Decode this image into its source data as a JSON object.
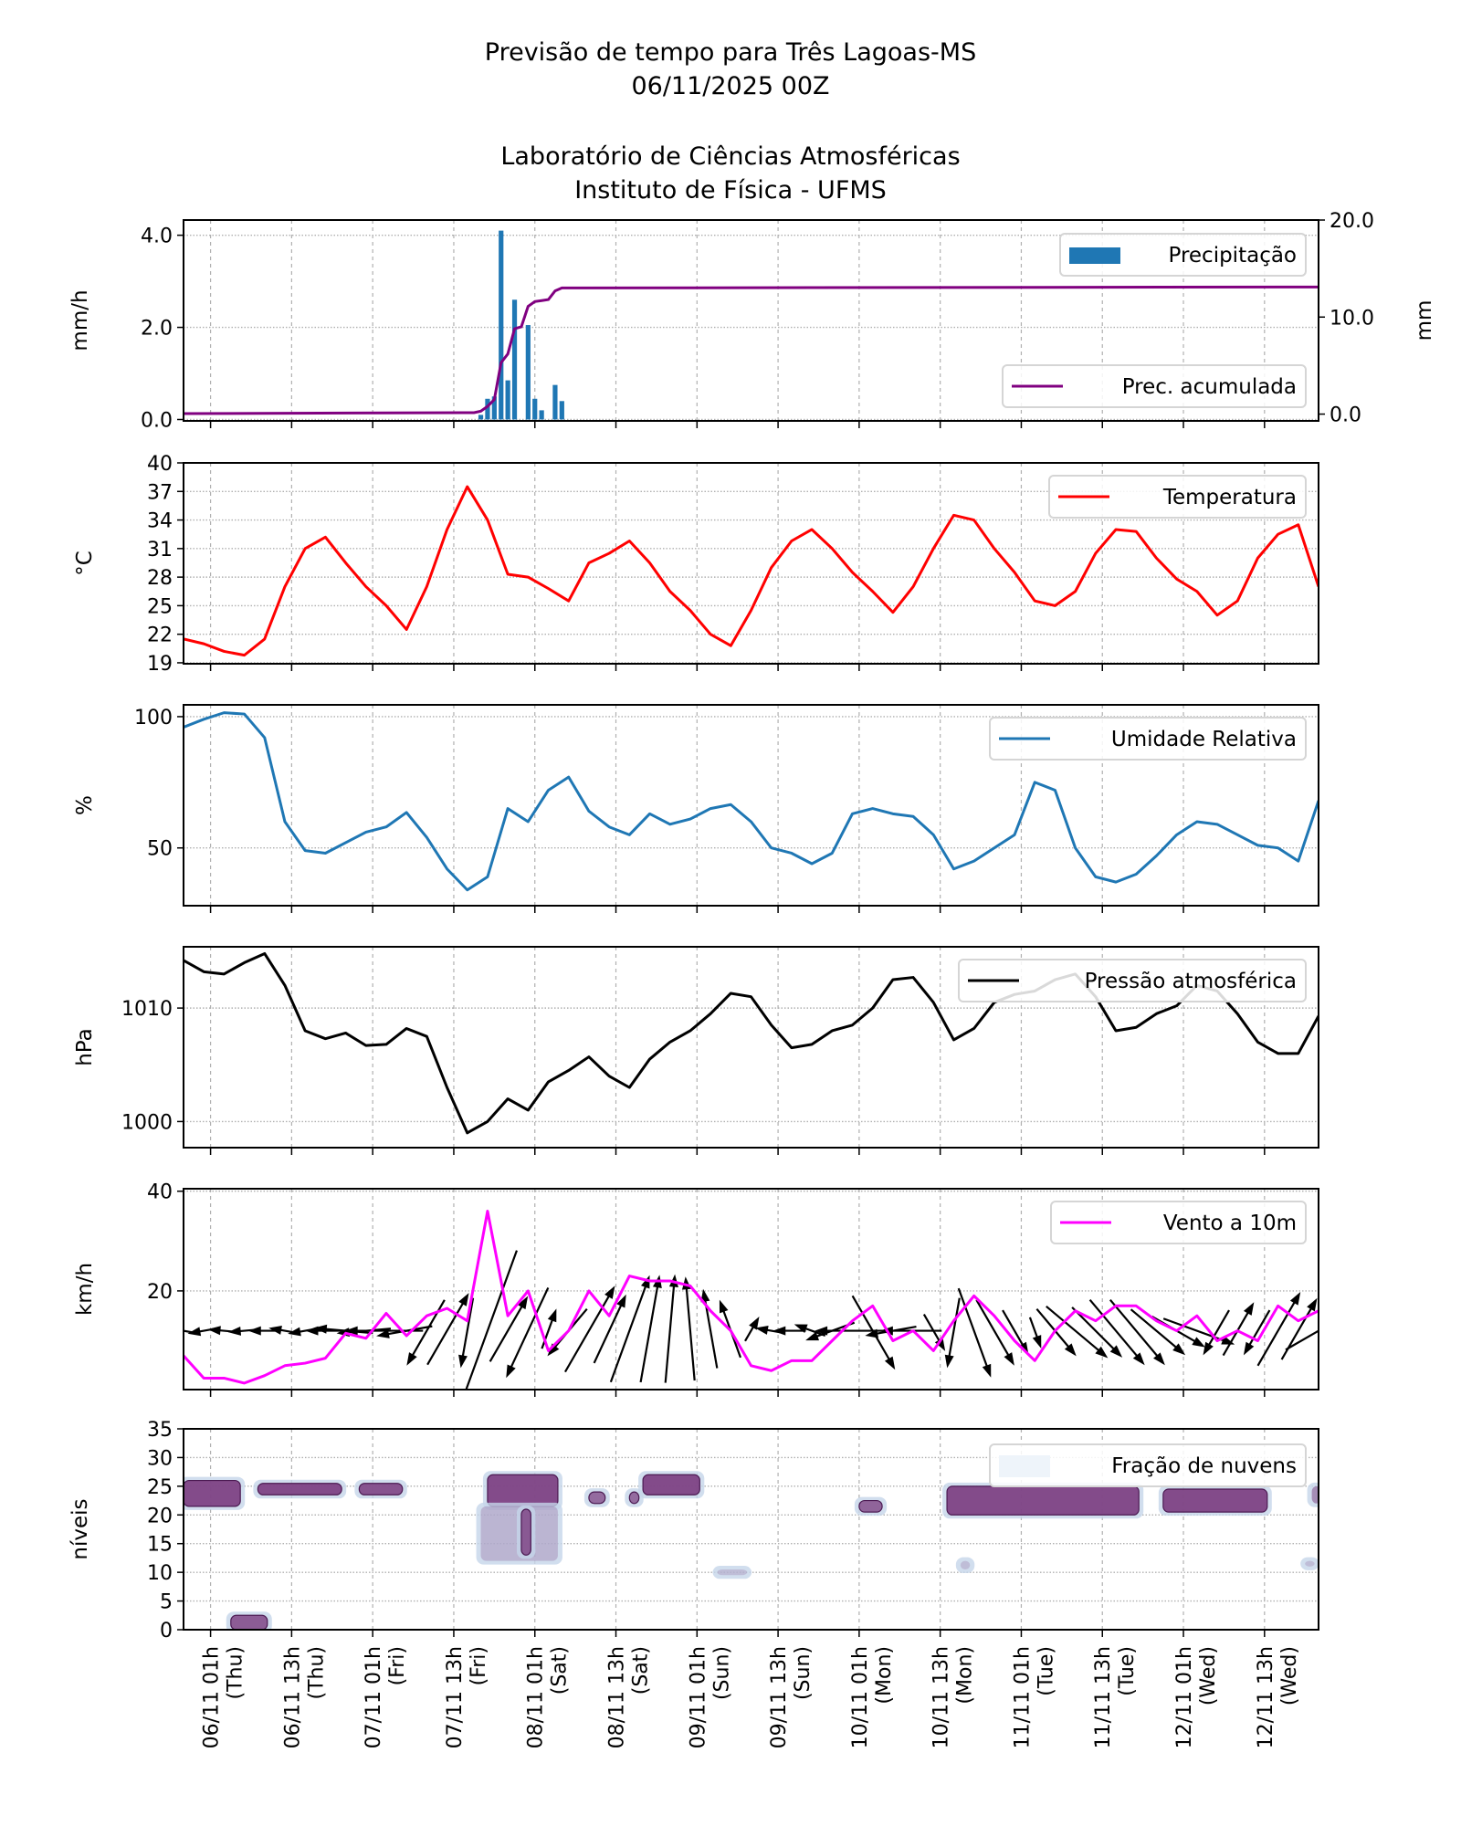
{
  "title_lines": [
    "Previsão de tempo para Três Lagoas-MS",
    "06/11/2025 00Z",
    "Laboratório de Ciências Atmosféricas",
    "Instituto de Física - UFMS"
  ],
  "chart_data": {
    "type": "line",
    "xlim": [
      "05/11 21h",
      "12/11 21h"
    ],
    "x_ticks": [
      {
        "date": "06/11 01h",
        "day": "(Thu)"
      },
      {
        "date": "06/11 13h",
        "day": "(Thu)"
      },
      {
        "date": "07/11 01h",
        "day": "(Fri)"
      },
      {
        "date": "07/11 13h",
        "day": "(Fri)"
      },
      {
        "date": "08/11 01h",
        "day": "(Sat)"
      },
      {
        "date": "08/11 13h",
        "day": "(Sat)"
      },
      {
        "date": "09/11 01h",
        "day": "(Sun)"
      },
      {
        "date": "09/11 13h",
        "day": "(Sun)"
      },
      {
        "date": "10/11 01h",
        "day": "(Mon)"
      },
      {
        "date": "10/11 13h",
        "day": "(Mon)"
      },
      {
        "date": "11/11 01h",
        "day": "(Tue)"
      },
      {
        "date": "11/11 13h",
        "day": "(Tue)"
      },
      {
        "date": "12/11 01h",
        "day": "(Wed)"
      },
      {
        "date": "12/11 13h",
        "day": "(Wed)"
      }
    ],
    "grid": true,
    "times": [
      "05/11 21h",
      "06/11 00h",
      "06/11 03h",
      "06/11 06h",
      "06/11 09h",
      "06/11 12h",
      "06/11 15h",
      "06/11 18h",
      "06/11 21h",
      "07/11 00h",
      "07/11 03h",
      "07/11 06h",
      "07/11 09h",
      "07/11 12h",
      "07/11 15h",
      "07/11 18h",
      "07/11 21h",
      "08/11 00h",
      "08/11 03h",
      "08/11 06h",
      "08/11 09h",
      "08/11 12h",
      "08/11 15h",
      "08/11 18h",
      "08/11 21h",
      "09/11 00h",
      "09/11 03h",
      "09/11 06h",
      "09/11 09h",
      "09/11 12h",
      "09/11 15h",
      "09/11 18h",
      "09/11 21h",
      "10/11 00h",
      "10/11 03h",
      "10/11 06h",
      "10/11 09h",
      "10/11 12h",
      "10/11 15h",
      "10/11 18h",
      "10/11 21h",
      "11/11 00h",
      "11/11 03h",
      "11/11 06h",
      "11/11 09h",
      "11/11 12h",
      "11/11 15h",
      "11/11 18h",
      "11/11 21h",
      "12/11 00h",
      "12/11 03h",
      "12/11 06h",
      "12/11 09h",
      "12/11 12h",
      "12/11 15h",
      "12/11 18h",
      "12/11 21h"
    ],
    "panels": [
      {
        "id": "precipitation",
        "ylabel": "mm/h",
        "ylim": [
          -0.03,
          4.33
        ],
        "yticks": [
          "0.0",
          "2.0",
          "4.0"
        ],
        "ylabel_right": "mm",
        "ylim_right": [
          -0.7,
          20
        ],
        "yticks_right": [
          "0.0",
          "10.0",
          "20.0"
        ],
        "bars": {
          "name": "Precipitação",
          "color": "#1f77b4",
          "times": [
            "07/11 17h",
            "07/11 18h",
            "07/11 19h",
            "07/11 20h",
            "07/11 21h",
            "07/11 22h",
            "07/11 23h",
            "08/11 00h",
            "08/11 01h",
            "08/11 02h",
            "08/11 03h",
            "08/11 04h",
            "08/11 05h"
          ],
          "values": [
            0.1,
            0.45,
            0.5,
            4.1,
            0.85,
            2.6,
            0,
            2.05,
            0.45,
            0.2,
            0,
            0.75,
            0.4
          ]
        },
        "accum": {
          "name": "Prec. acumulada",
          "color": "#800080",
          "times": [
            "05/11 21h",
            "07/11 16h",
            "07/11 17h",
            "07/11 18h",
            "07/11 19h",
            "07/11 20h",
            "07/11 21h",
            "07/11 22h",
            "07/11 23h",
            "08/11 00h",
            "08/11 01h",
            "08/11 02h",
            "08/11 03h",
            "08/11 04h",
            "08/11 05h",
            "12/11 21h"
          ],
          "values": [
            0.05,
            0.15,
            0.3,
            0.8,
            1.5,
            5.3,
            6.2,
            8.8,
            9.0,
            11.1,
            11.6,
            11.7,
            11.8,
            12.7,
            13.0,
            13.1
          ]
        }
      },
      {
        "id": "temperature",
        "ylabel": "$^\\circ$C",
        "ylabel_text": "°C",
        "ylim": [
          18.9,
          40
        ],
        "yticks": [
          "19",
          "22",
          "25",
          "28",
          "31",
          "34",
          "37",
          "40"
        ],
        "series": {
          "name": "Temperatura",
          "color": "#ff0000",
          "values": [
            21.5,
            21.0,
            20.2,
            19.8,
            21.5,
            27,
            31,
            32.2,
            29.5,
            27,
            25,
            22.5,
            27,
            33,
            37.5,
            34,
            28.3,
            28,
            26.8,
            25.5,
            29.5,
            30.5,
            31.8,
            29.5,
            26.5,
            24.5,
            22,
            20.8,
            24.5,
            29,
            31.8,
            33,
            31,
            28.5,
            26.5,
            24.3,
            27,
            31,
            34.5,
            34,
            31,
            28.5,
            25.5,
            25,
            26.5,
            30.5,
            33,
            32.8,
            30,
            27.8,
            26.5,
            24,
            25.5,
            30,
            32.5,
            33.5,
            27
          ]
        }
      },
      {
        "id": "humidity",
        "ylabel": "%",
        "ylim": [
          28,
          104.5
        ],
        "yticks": [
          "50",
          "100"
        ],
        "series": {
          "name": "Umidade Relativa",
          "color": "#1f77b4",
          "values": [
            96,
            99,
            101.5,
            101,
            92,
            60,
            49,
            48,
            52,
            56,
            58,
            63.5,
            54,
            42,
            34,
            39,
            65,
            60,
            72,
            77,
            64,
            58,
            55,
            63,
            59,
            61,
            65,
            66.5,
            60,
            50,
            48,
            44,
            48,
            63,
            65,
            63,
            62,
            55,
            42,
            45,
            50,
            55,
            75,
            72,
            50,
            39,
            37,
            40,
            47,
            55,
            60,
            59,
            55,
            51,
            50,
            45,
            68
          ]
        }
      },
      {
        "id": "pressure",
        "ylabel": "hPa",
        "ylim": [
          997.7,
          1015.4
        ],
        "yticks": [
          "1000",
          "1010"
        ],
        "series": {
          "name": "Pressão atmosférica",
          "color": "#000000",
          "values": [
            1014.2,
            1013.2,
            1013,
            1014,
            1014.8,
            1012,
            1008,
            1007.3,
            1007.8,
            1006.7,
            1006.8,
            1008.2,
            1007.5,
            1003,
            999,
            1000,
            1002,
            1001,
            1003.5,
            1004.5,
            1005.7,
            1004,
            1003,
            1005.5,
            1007,
            1008,
            1009.5,
            1011.3,
            1011,
            1008.5,
            1006.5,
            1006.8,
            1008,
            1008.5,
            1010,
            1012.5,
            1012.7,
            1010.5,
            1007.2,
            1008.2,
            1010.5,
            1011.2,
            1011.5,
            1012.5,
            1013,
            1011,
            1008,
            1008.3,
            1009.5,
            1010.2,
            1012,
            1011.5,
            1009.5,
            1007,
            1006,
            1006,
            1009.3
          ]
        }
      },
      {
        "id": "wind",
        "ylabel": "km/h",
        "ylim": [
          0.2,
          40.5
        ],
        "yticks": [
          "20",
          "40"
        ],
        "series": {
          "name": "Vento a 10m",
          "color": "#ff00ff",
          "values": [
            7,
            2.5,
            2.5,
            1.5,
            3,
            5,
            5.5,
            6.5,
            11.5,
            10.5,
            15.5,
            11,
            15,
            16.5,
            14,
            36,
            15,
            20,
            8,
            12,
            20,
            15,
            23,
            22,
            22,
            21,
            16,
            12,
            5,
            4,
            6,
            6,
            10,
            14,
            17,
            10,
            12,
            8,
            14,
            19,
            15,
            10,
            6,
            12,
            16,
            14,
            17,
            17,
            14,
            12,
            15,
            10,
            12,
            10,
            17,
            14,
            16
          ]
        },
        "arrows": {
          "color": "#000000",
          "direction_deg": [
            170,
            190,
            175,
            185,
            180,
            170,
            190,
            180,
            175,
            185,
            180,
            190,
            240,
            60,
            260,
            250,
            60,
            245,
            70,
            230,
            60,
            65,
            70,
            80,
            85,
            95,
            100,
            110,
            60,
            170,
            180,
            160,
            200,
            180,
            300,
            190,
            180,
            300,
            260,
            290,
            300,
            300,
            290,
            310,
            320,
            315,
            310,
            310,
            320,
            330,
            340,
            240,
            60,
            240,
            60,
            60,
            30
          ]
        }
      },
      {
        "id": "clouds",
        "ylabel": "níveis",
        "ylim": [
          0,
          35
        ],
        "yticks": [
          "0",
          "5",
          "10",
          "15",
          "20",
          "25",
          "30",
          "35"
        ],
        "legend": "Fração de nuvens",
        "patches": [
          {
            "start": "05/11 21h",
            "end": "06/11 05h",
            "level_min": 21.5,
            "level_max": 26,
            "fraction": 0.9
          },
          {
            "start": "06/11 08h",
            "end": "06/11 20h",
            "level_min": 23.5,
            "level_max": 25.5,
            "fraction": 0.9
          },
          {
            "start": "06/11 23h",
            "end": "07/11 05h",
            "level_min": 23.5,
            "level_max": 25.5,
            "fraction": 0.85
          },
          {
            "start": "07/11 18h",
            "end": "08/11 04h",
            "level_min": 21.5,
            "level_max": 27,
            "fraction": 0.9
          },
          {
            "start": "07/11 17h",
            "end": "08/11 04h",
            "level_min": 12,
            "level_max": 21.5,
            "fraction": 0.25
          },
          {
            "start": "07/11 23h",
            "end": "08/11 00h",
            "level_min": 13,
            "level_max": 21,
            "fraction": 0.8
          },
          {
            "start": "08/11 09h",
            "end": "08/11 11h",
            "level_min": 22,
            "level_max": 24,
            "fraction": 0.7
          },
          {
            "start": "08/11 15h",
            "end": "08/11 16h",
            "level_min": 22,
            "level_max": 24,
            "fraction": 0.7
          },
          {
            "start": "08/11 17h",
            "end": "09/11 01h",
            "level_min": 23.5,
            "level_max": 27,
            "fraction": 0.9
          },
          {
            "start": "09/11 04h",
            "end": "09/11 08h",
            "level_min": 9.5,
            "level_max": 10.5,
            "fraction": 0.2
          },
          {
            "start": "10/11 01h",
            "end": "10/11 04h",
            "level_min": 20.5,
            "level_max": 22.5,
            "fraction": 0.75
          },
          {
            "start": "10/11 14h",
            "end": "11/11 18h",
            "level_min": 20,
            "level_max": 25,
            "fraction": 0.9
          },
          {
            "start": "11/11 22h",
            "end": "12/11 13h",
            "level_min": 20.5,
            "level_max": 24.5,
            "fraction": 0.9
          },
          {
            "start": "06/11 04h",
            "end": "06/11 09h",
            "level_min": 0,
            "level_max": 2.5,
            "fraction": 0.8
          },
          {
            "start": "12/11 20h",
            "end": "12/11 21h",
            "level_min": 22,
            "level_max": 25,
            "fraction": 0.5
          },
          {
            "start": "10/11 16h",
            "end": "10/11 17h",
            "level_min": 10.5,
            "level_max": 12,
            "fraction": 0.2
          },
          {
            "start": "12/11 19h",
            "end": "12/11 20h",
            "level_min": 11,
            "level_max": 12,
            "fraction": 0.2
          }
        ],
        "colors": {
          "dense": "#7a3b7e",
          "edge": "#4b1a52",
          "light": "#c6d6ea"
        }
      }
    ]
  }
}
